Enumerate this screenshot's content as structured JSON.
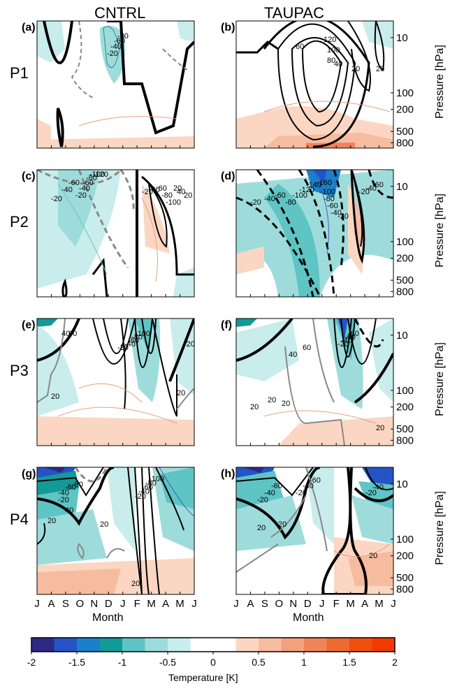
{
  "figure": {
    "column_titles": [
      "CNTRL",
      "TAUPAC"
    ],
    "row_labels": [
      "P1",
      "P2",
      "P3",
      "P4"
    ],
    "panel_letters": [
      "(a)",
      "(b)",
      "(c)",
      "(d)",
      "(e)",
      "(f)",
      "(g)",
      "(h)"
    ],
    "right_axis_label": "Pressure [hPa]",
    "x_axis_label": "Month",
    "colorbar_label": "Temperature [K]"
  },
  "chart_data": {
    "type": "heatmap",
    "x_ticks": [
      "J",
      "A",
      "S",
      "O",
      "N",
      "D",
      "J",
      "F",
      "M",
      "A",
      "M",
      "J"
    ],
    "pressure_ticks": [
      10,
      100,
      200,
      500,
      800
    ],
    "pressure_scale": "log",
    "colorbar": {
      "ticks": [
        "-2",
        "-1.5",
        "-1",
        "-0.5",
        "0",
        "0.5",
        "1",
        "1.5",
        "2"
      ],
      "min": -2,
      "max": 2,
      "colors": [
        "#2e2a84",
        "#2553c6",
        "#1b7fc9",
        "#129a96",
        "#5fc4c4",
        "#9edcdc",
        "#c9ecec",
        "#ffffff",
        "#ffffff",
        "#fbd7c3",
        "#f6bc9f",
        "#f3a07f",
        "#f08459",
        "#ee6a33",
        "#ef5010",
        "#f13a04"
      ]
    },
    "contour_labels": {
      "a": [
        "-20",
        "-40",
        "-60",
        "-80"
      ],
      "b": [
        "60",
        "120",
        "100",
        "80",
        "40",
        "20",
        "20"
      ],
      "c": [
        "-20",
        "-40",
        "-60",
        "-20",
        "-40",
        "-60",
        "-80",
        "-100",
        "-120",
        "-20",
        "-40",
        "-60",
        "-80",
        "-100",
        "20",
        "40",
        "20"
      ],
      "d": [
        "-20",
        "-40",
        "-60",
        "-80",
        "-100",
        "-120",
        "-140",
        "-160",
        "-100",
        "-80",
        "-60",
        "-40",
        "-20",
        "-20",
        "-40",
        "-60"
      ],
      "e": [
        "20",
        "40",
        "60",
        "-20",
        "-40",
        "-60",
        "-80",
        "-100",
        "20",
        "-20"
      ],
      "f": [
        "20",
        "20",
        "20",
        "40",
        "60",
        "-20",
        "-40",
        "-60",
        "-80",
        "20"
      ],
      "g": [
        "-20",
        "-40",
        "-60",
        "-80",
        "20",
        "40",
        "20",
        "20",
        "-20",
        "-40",
        "-60",
        "-80",
        "-100"
      ],
      "h": [
        "-20",
        "-40",
        "-60",
        "20",
        "-20",
        "-40",
        "-60",
        "20",
        "20",
        "-20",
        "-40"
      ]
    }
  }
}
